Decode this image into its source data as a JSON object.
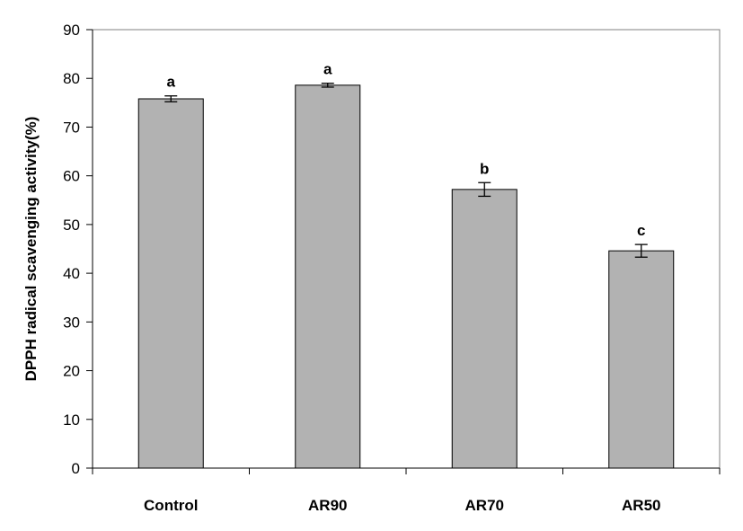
{
  "chart_data": {
    "type": "bar",
    "title": "",
    "xlabel": "",
    "ylabel": "DPPH radical scavenging activity(%)",
    "categories": [
      "Control",
      "AR90",
      "AR70",
      "AR50"
    ],
    "values": [
      75.8,
      78.6,
      57.2,
      44.6
    ],
    "errors": [
      0.6,
      0.4,
      1.4,
      1.3
    ],
    "significance": [
      "a",
      "a",
      "b",
      "c"
    ],
    "ylim": [
      0,
      90
    ],
    "yticks": [
      "0",
      "10",
      "20",
      "30",
      "40",
      "50",
      "60",
      "70",
      "80",
      "90"
    ],
    "grid": false,
    "legend": "none",
    "colors": {
      "bar_fill": "#b2b2b2",
      "bar_stroke": "#000000",
      "axis": "#000000",
      "frame": "#808080"
    }
  }
}
